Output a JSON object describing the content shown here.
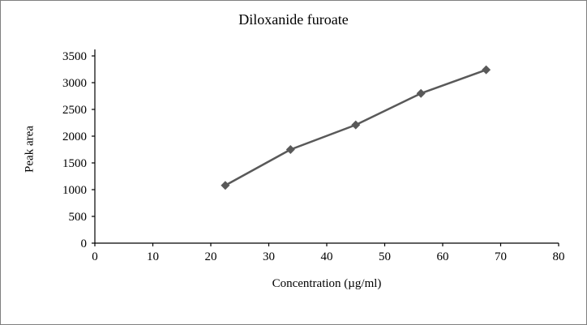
{
  "chart_data": {
    "type": "line",
    "title": "Diloxanide furoate",
    "xlabel": "Concentration (µg/ml)",
    "ylabel": "Peak area",
    "x": [
      22.5,
      33.75,
      45,
      56.25,
      67.5
    ],
    "y": [
      1080,
      1750,
      2210,
      2800,
      3240
    ],
    "xlim": [
      0,
      80
    ],
    "ylim": [
      0,
      3500
    ],
    "xtick_step": 10,
    "ytick_step": 500,
    "grid": false,
    "legend": "none",
    "line_color": "#595959",
    "marker": "diamond",
    "axis_color": "#000000"
  }
}
